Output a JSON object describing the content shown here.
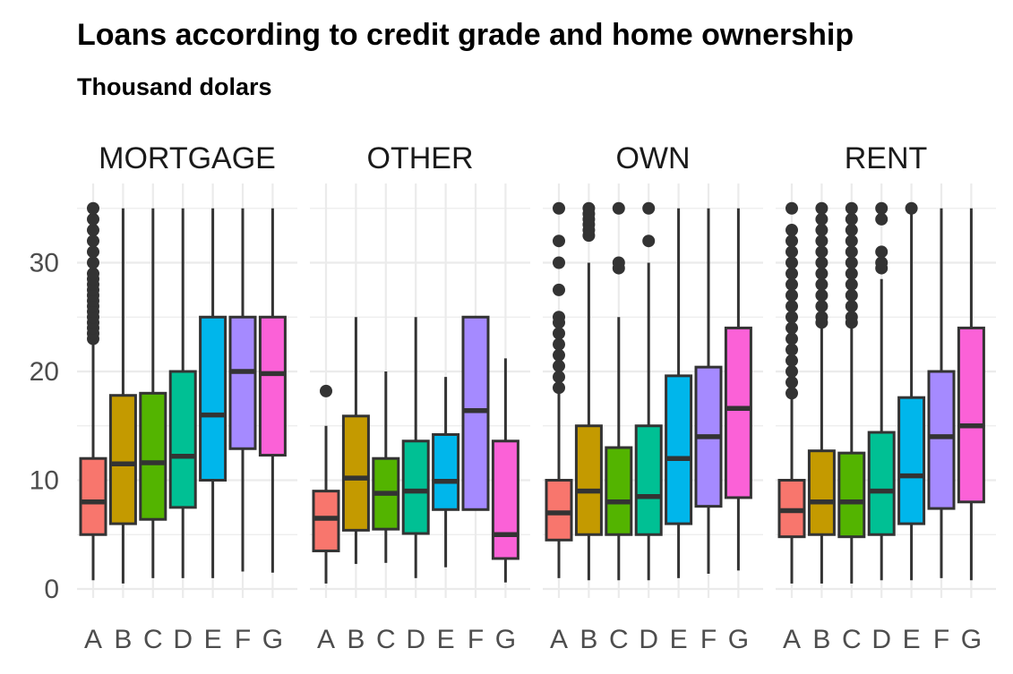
{
  "title": "Loans according to credit grade and home ownership",
  "subtitle": "Thousand dolars",
  "chart_data": {
    "type": "boxplot",
    "title": "Loans according to credit grade and home ownership",
    "subtitle": "Thousand dolars",
    "categories": [
      "A",
      "B",
      "C",
      "D",
      "E",
      "F",
      "G"
    ],
    "colors": {
      "A": "#F8766D",
      "B": "#C49A00",
      "C": "#53B400",
      "D": "#00C094",
      "E": "#00B6EB",
      "F": "#A58AFF",
      "G": "#FB61D7"
    },
    "ylim": [
      0,
      36
    ],
    "yticks": [
      0,
      10,
      20,
      30
    ],
    "grid": true,
    "legend": "none",
    "panels": [
      {
        "name": "MORTGAGE",
        "boxes": [
          {
            "grade": "A",
            "min": 0.8,
            "q1": 5,
            "median": 8,
            "q3": 12,
            "max": 22.5,
            "outliers": [
              23,
              23.5,
              24,
              24.5,
              25,
              25.5,
              26,
              26.5,
              27,
              27.5,
              28,
              28.5,
              29,
              30,
              31,
              32,
              33,
              34,
              35
            ]
          },
          {
            "grade": "B",
            "min": 0.5,
            "q1": 6,
            "median": 11.5,
            "q3": 17.8,
            "max": 35,
            "outliers": []
          },
          {
            "grade": "C",
            "min": 1,
            "q1": 6.4,
            "median": 11.6,
            "q3": 18,
            "max": 35,
            "outliers": []
          },
          {
            "grade": "D",
            "min": 1,
            "q1": 7.5,
            "median": 12.2,
            "q3": 20,
            "max": 35,
            "outliers": []
          },
          {
            "grade": "E",
            "min": 1,
            "q1": 10,
            "median": 16,
            "q3": 25,
            "max": 35,
            "outliers": []
          },
          {
            "grade": "F",
            "min": 1.6,
            "q1": 12.9,
            "median": 20,
            "q3": 25,
            "max": 35,
            "outliers": []
          },
          {
            "grade": "G",
            "min": 1.5,
            "q1": 12.3,
            "median": 19.8,
            "q3": 25,
            "max": 35,
            "outliers": []
          }
        ]
      },
      {
        "name": "OTHER",
        "boxes": [
          {
            "grade": "A",
            "min": 0.5,
            "q1": 3.5,
            "median": 6.5,
            "q3": 9,
            "max": 15,
            "outliers": [
              18.2
            ]
          },
          {
            "grade": "B",
            "min": 2.3,
            "q1": 5.4,
            "median": 10.2,
            "q3": 15.9,
            "max": 25,
            "outliers": []
          },
          {
            "grade": "C",
            "min": 2.4,
            "q1": 5.5,
            "median": 8.8,
            "q3": 12,
            "max": 20,
            "outliers": []
          },
          {
            "grade": "D",
            "min": 1,
            "q1": 5.1,
            "median": 9,
            "q3": 13.6,
            "max": 25,
            "outliers": []
          },
          {
            "grade": "E",
            "min": 2,
            "q1": 7.3,
            "median": 9.9,
            "q3": 14.2,
            "max": 19.5,
            "outliers": []
          },
          {
            "grade": "F",
            "min": 7.3,
            "q1": 7.3,
            "median": 16.4,
            "q3": 25,
            "max": 25,
            "outliers": []
          },
          {
            "grade": "G",
            "min": 0.6,
            "q1": 2.8,
            "median": 5,
            "q3": 13.6,
            "max": 21.2,
            "outliers": []
          }
        ]
      },
      {
        "name": "OWN",
        "boxes": [
          {
            "grade": "A",
            "min": 1,
            "q1": 4.5,
            "median": 7,
            "q3": 10,
            "max": 18,
            "outliers": [
              18.5,
              19.5,
              20.5,
              21.5,
              22.5,
              23.5,
              24.5,
              25,
              27.5,
              30,
              32,
              35
            ]
          },
          {
            "grade": "B",
            "min": 0.8,
            "q1": 5,
            "median": 9,
            "q3": 15,
            "max": 30,
            "outliers": [
              32.5,
              33,
              33.5,
              34,
              34.5,
              35
            ]
          },
          {
            "grade": "C",
            "min": 0.8,
            "q1": 5,
            "median": 8,
            "q3": 13,
            "max": 25,
            "outliers": [
              29.5,
              30,
              35
            ]
          },
          {
            "grade": "D",
            "min": 0.8,
            "q1": 5,
            "median": 8.5,
            "q3": 15,
            "max": 30,
            "outliers": [
              32,
              35
            ]
          },
          {
            "grade": "E",
            "min": 1,
            "q1": 6,
            "median": 12,
            "q3": 19.6,
            "max": 35,
            "outliers": []
          },
          {
            "grade": "F",
            "min": 1.4,
            "q1": 7.6,
            "median": 14,
            "q3": 20.4,
            "max": 35,
            "outliers": []
          },
          {
            "grade": "G",
            "min": 1.7,
            "q1": 8.4,
            "median": 16.6,
            "q3": 24,
            "max": 35,
            "outliers": []
          }
        ]
      },
      {
        "name": "RENT",
        "boxes": [
          {
            "grade": "A",
            "min": 0.5,
            "q1": 4.8,
            "median": 7.2,
            "q3": 10,
            "max": 17.5,
            "outliers": [
              18,
              19,
              20,
              21,
              22,
              23,
              24,
              25,
              26,
              27,
              28,
              29,
              30,
              31,
              32,
              33,
              35
            ]
          },
          {
            "grade": "B",
            "min": 0.5,
            "q1": 5,
            "median": 8,
            "q3": 12.7,
            "max": 24,
            "outliers": [
              24.5,
              25,
              26,
              27,
              28,
              29,
              30,
              31,
              32,
              33,
              34,
              35
            ]
          },
          {
            "grade": "C",
            "min": 0.5,
            "q1": 4.8,
            "median": 8,
            "q3": 12.5,
            "max": 24,
            "outliers": [
              24.5,
              25,
              26,
              27,
              28,
              29,
              30,
              31,
              32,
              33,
              34,
              35
            ]
          },
          {
            "grade": "D",
            "min": 0.8,
            "q1": 5,
            "median": 9,
            "q3": 14.4,
            "max": 28.5,
            "outliers": [
              29.5,
              30,
              31,
              34,
              35
            ]
          },
          {
            "grade": "E",
            "min": 0.8,
            "q1": 6,
            "median": 10.4,
            "q3": 17.6,
            "max": 35,
            "outliers": [
              35
            ]
          },
          {
            "grade": "F",
            "min": 1,
            "q1": 7.4,
            "median": 14,
            "q3": 20,
            "max": 35,
            "outliers": []
          },
          {
            "grade": "G",
            "min": 0.8,
            "q1": 8,
            "median": 15,
            "q3": 24,
            "max": 35,
            "outliers": []
          }
        ]
      }
    ]
  }
}
